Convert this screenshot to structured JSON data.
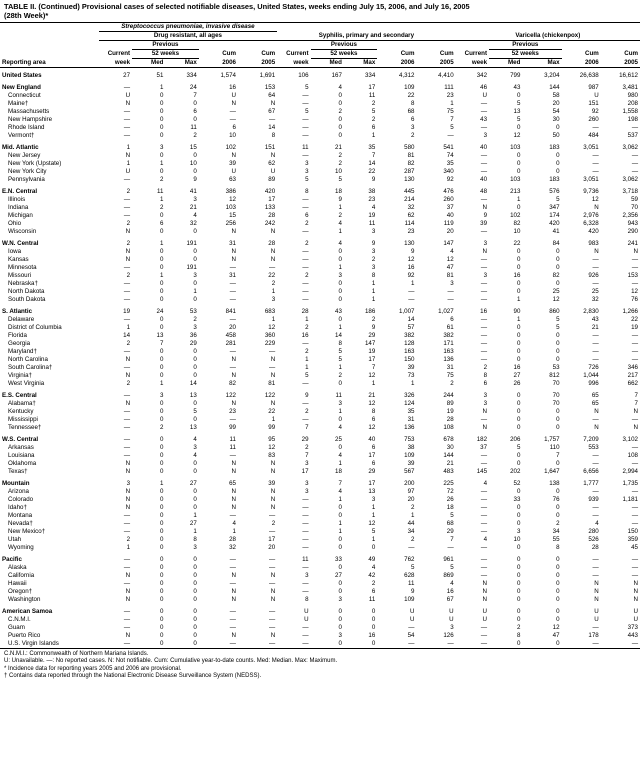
{
  "title_line1": "TABLE II. (Continued) Provisional cases of selected notifiable diseases, United States, weeks ending July 15, 2006, and July 16, 2005",
  "title_line2": "(28th Week)*",
  "disease_groups": [
    "Streptococcus pneumoniae, invasive disease",
    "",
    ""
  ],
  "subgroup_labels": [
    "Drug resistant, all ages",
    "Syphilis, primary and secondary",
    "Varicella (chickenpox)"
  ],
  "prev_label": "Previous",
  "col_labels": [
    "Reporting area",
    "Current week",
    "52 weeks Med",
    "Max",
    "Cum 2006",
    "Cum 2005",
    "Current week",
    "52 weeks Med",
    "Max",
    "Cum 2006",
    "Cum 2005",
    "Current week",
    "52 weeks Med",
    "Max",
    "Cum 2006",
    "Cum 2005"
  ],
  "row_head": [
    "Current",
    "52 weeks",
    "",
    "Cum",
    "Cum",
    "Current",
    "52 weeks",
    "",
    "Cum",
    "Cum",
    "Current",
    "52 weeks",
    "",
    "Cum",
    "Cum"
  ],
  "row_head2": [
    "week",
    "Med",
    "Max",
    "2006",
    "2005",
    "week",
    "Med",
    "Max",
    "2006",
    "2005",
    "week",
    "Med",
    "Max",
    "2006",
    "2005"
  ],
  "rows": [
    {
      "section": true,
      "label": "United States",
      "v": [
        "27",
        "51",
        "334",
        "1,574",
        "1,691",
        "106",
        "167",
        "334",
        "4,312",
        "4,410",
        "342",
        "799",
        "3,204",
        "26,638",
        "16,612"
      ]
    },
    {
      "section": true,
      "label": "New England",
      "v": [
        "—",
        "1",
        "24",
        "16",
        "153",
        "5",
        "4",
        "17",
        "109",
        "111",
        "46",
        "43",
        "144",
        "987",
        "3,481"
      ]
    },
    {
      "label": "Connecticut",
      "v": [
        "U",
        "0",
        "7",
        "U",
        "64",
        "—",
        "0",
        "11",
        "22",
        "23",
        "U",
        "0",
        "58",
        "U",
        "980"
      ]
    },
    {
      "label": "Maine†",
      "v": [
        "N",
        "0",
        "0",
        "N",
        "N",
        "—",
        "0",
        "2",
        "8",
        "1",
        "—",
        "5",
        "20",
        "151",
        "208"
      ]
    },
    {
      "label": "Massachusetts",
      "v": [
        "—",
        "0",
        "6",
        "—",
        "67",
        "5",
        "2",
        "5",
        "68",
        "75",
        "—",
        "13",
        "54",
        "92",
        "1,558"
      ]
    },
    {
      "label": "New Hampshire",
      "v": [
        "—",
        "0",
        "0",
        "—",
        "—",
        "—",
        "0",
        "2",
        "6",
        "7",
        "43",
        "5",
        "30",
        "260",
        "198"
      ]
    },
    {
      "label": "Rhode Island",
      "v": [
        "—",
        "0",
        "11",
        "6",
        "14",
        "—",
        "0",
        "6",
        "3",
        "5",
        "—",
        "0",
        "0",
        "—",
        "—"
      ]
    },
    {
      "label": "Vermont†",
      "v": [
        "—",
        "0",
        "2",
        "10",
        "8",
        "—",
        "0",
        "1",
        "2",
        "—",
        "3",
        "12",
        "50",
        "484",
        "537"
      ]
    },
    {
      "section": true,
      "label": "Mid. Atlantic",
      "v": [
        "1",
        "3",
        "15",
        "102",
        "151",
        "11",
        "21",
        "35",
        "580",
        "541",
        "40",
        "103",
        "183",
        "3,051",
        "3,062"
      ]
    },
    {
      "label": "New Jersey",
      "v": [
        "N",
        "0",
        "0",
        "N",
        "N",
        "—",
        "2",
        "7",
        "81",
        "74",
        "—",
        "0",
        "0",
        "—",
        "—"
      ]
    },
    {
      "label": "New York (Upstate)",
      "v": [
        "1",
        "1",
        "10",
        "39",
        "62",
        "3",
        "2",
        "14",
        "82",
        "35",
        "—",
        "0",
        "0",
        "—",
        "—"
      ]
    },
    {
      "label": "New York City",
      "v": [
        "U",
        "0",
        "0",
        "U",
        "U",
        "3",
        "10",
        "22",
        "287",
        "340",
        "—",
        "0",
        "0",
        "—",
        "—"
      ]
    },
    {
      "label": "Pennsylvania",
      "v": [
        "—",
        "2",
        "9",
        "63",
        "89",
        "5",
        "5",
        "9",
        "130",
        "92",
        "40",
        "103",
        "183",
        "3,051",
        "3,062"
      ]
    },
    {
      "section": true,
      "label": "E.N. Central",
      "v": [
        "2",
        "11",
        "41",
        "386",
        "420",
        "8",
        "18",
        "38",
        "445",
        "476",
        "48",
        "213",
        "576",
        "9,736",
        "3,718"
      ]
    },
    {
      "label": "Illinois",
      "v": [
        "—",
        "1",
        "3",
        "12",
        "17",
        "—",
        "9",
        "23",
        "214",
        "260",
        "—",
        "1",
        "5",
        "12",
        "59"
      ]
    },
    {
      "label": "Indiana",
      "v": [
        "—",
        "2",
        "21",
        "103",
        "133",
        "—",
        "1",
        "4",
        "32",
        "37",
        "N",
        "0",
        "347",
        "N",
        "70"
      ]
    },
    {
      "label": "Michigan",
      "v": [
        "—",
        "0",
        "4",
        "15",
        "28",
        "6",
        "2",
        "19",
        "62",
        "40",
        "9",
        "102",
        "174",
        "2,976",
        "2,356"
      ]
    },
    {
      "label": "Ohio",
      "v": [
        "2",
        "6",
        "32",
        "256",
        "242",
        "2",
        "4",
        "11",
        "114",
        "119",
        "39",
        "82",
        "420",
        "6,328",
        "943"
      ]
    },
    {
      "label": "Wisconsin",
      "v": [
        "N",
        "0",
        "0",
        "N",
        "N",
        "—",
        "1",
        "3",
        "23",
        "20",
        "—",
        "10",
        "41",
        "420",
        "290"
      ]
    },
    {
      "section": true,
      "label": "W.N. Central",
      "v": [
        "2",
        "1",
        "191",
        "31",
        "28",
        "2",
        "4",
        "9",
        "130",
        "147",
        "3",
        "22",
        "84",
        "983",
        "241"
      ]
    },
    {
      "label": "Iowa",
      "v": [
        "N",
        "0",
        "0",
        "N",
        "N",
        "—",
        "0",
        "3",
        "9",
        "4",
        "N",
        "0",
        "0",
        "N",
        "N"
      ]
    },
    {
      "label": "Kansas",
      "v": [
        "N",
        "0",
        "0",
        "N",
        "N",
        "—",
        "0",
        "2",
        "12",
        "12",
        "—",
        "0",
        "0",
        "—",
        "—"
      ]
    },
    {
      "label": "Minnesota",
      "v": [
        "—",
        "0",
        "191",
        "—",
        "—",
        "—",
        "1",
        "3",
        "16",
        "47",
        "—",
        "0",
        "0",
        "—",
        "—"
      ]
    },
    {
      "label": "Missouri",
      "v": [
        "2",
        "1",
        "3",
        "31",
        "22",
        "2",
        "3",
        "8",
        "92",
        "81",
        "3",
        "16",
        "82",
        "926",
        "153"
      ]
    },
    {
      "label": "Nebraska†",
      "v": [
        "—",
        "0",
        "0",
        "—",
        "2",
        "—",
        "0",
        "1",
        "1",
        "3",
        "—",
        "0",
        "0",
        "—",
        "—"
      ]
    },
    {
      "label": "North Dakota",
      "v": [
        "—",
        "0",
        "1",
        "—",
        "1",
        "—",
        "0",
        "1",
        "—",
        "—",
        "—",
        "0",
        "25",
        "25",
        "12"
      ]
    },
    {
      "label": "South Dakota",
      "v": [
        "—",
        "0",
        "0",
        "—",
        "3",
        "—",
        "0",
        "1",
        "—",
        "—",
        "—",
        "1",
        "12",
        "32",
        "76"
      ]
    },
    {
      "section": true,
      "label": "S. Atlantic",
      "v": [
        "19",
        "24",
        "53",
        "841",
        "683",
        "28",
        "43",
        "186",
        "1,007",
        "1,027",
        "16",
        "90",
        "860",
        "2,830",
        "1,266"
      ]
    },
    {
      "label": "Delaware",
      "v": [
        "—",
        "0",
        "2",
        "—",
        "1",
        "1",
        "0",
        "2",
        "14",
        "6",
        "—",
        "1",
        "5",
        "43",
        "22"
      ]
    },
    {
      "label": "District of Columbia",
      "v": [
        "1",
        "0",
        "3",
        "20",
        "12",
        "2",
        "1",
        "9",
        "57",
        "61",
        "—",
        "0",
        "5",
        "21",
        "19"
      ]
    },
    {
      "label": "Florida",
      "v": [
        "14",
        "13",
        "36",
        "458",
        "360",
        "16",
        "14",
        "29",
        "382",
        "382",
        "—",
        "0",
        "0",
        "—",
        "—"
      ]
    },
    {
      "label": "Georgia",
      "v": [
        "2",
        "7",
        "29",
        "281",
        "229",
        "—",
        "8",
        "147",
        "128",
        "171",
        "—",
        "0",
        "0",
        "—",
        "—"
      ]
    },
    {
      "label": "Maryland†",
      "v": [
        "—",
        "0",
        "0",
        "—",
        "—",
        "2",
        "5",
        "19",
        "163",
        "163",
        "—",
        "0",
        "0",
        "—",
        "—"
      ]
    },
    {
      "label": "North Carolina",
      "v": [
        "N",
        "0",
        "0",
        "N",
        "N",
        "1",
        "5",
        "17",
        "150",
        "136",
        "—",
        "0",
        "0",
        "—",
        "—"
      ]
    },
    {
      "label": "South Carolina†",
      "v": [
        "—",
        "0",
        "0",
        "—",
        "—",
        "1",
        "1",
        "7",
        "39",
        "31",
        "2",
        "16",
        "53",
        "726",
        "346"
      ]
    },
    {
      "label": "Virginia†",
      "v": [
        "N",
        "0",
        "0",
        "N",
        "N",
        "5",
        "2",
        "12",
        "73",
        "75",
        "8",
        "27",
        "812",
        "1,044",
        "217"
      ]
    },
    {
      "label": "West Virginia",
      "v": [
        "2",
        "1",
        "14",
        "82",
        "81",
        "—",
        "0",
        "1",
        "1",
        "2",
        "6",
        "26",
        "70",
        "996",
        "662"
      ]
    },
    {
      "section": true,
      "label": "E.S. Central",
      "v": [
        "—",
        "3",
        "13",
        "122",
        "122",
        "9",
        "11",
        "21",
        "326",
        "244",
        "3",
        "0",
        "70",
        "65",
        "7"
      ]
    },
    {
      "label": "Alabama†",
      "v": [
        "N",
        "0",
        "0",
        "N",
        "N",
        "—",
        "3",
        "12",
        "124",
        "89",
        "3",
        "0",
        "70",
        "65",
        "7"
      ]
    },
    {
      "label": "Kentucky",
      "v": [
        "—",
        "0",
        "5",
        "23",
        "22",
        "2",
        "1",
        "8",
        "35",
        "19",
        "N",
        "0",
        "0",
        "N",
        "N"
      ]
    },
    {
      "label": "Mississippi",
      "v": [
        "—",
        "0",
        "0",
        "—",
        "1",
        "—",
        "0",
        "6",
        "31",
        "28",
        "—",
        "0",
        "0",
        "—",
        "—"
      ]
    },
    {
      "label": "Tennessee†",
      "v": [
        "—",
        "2",
        "13",
        "99",
        "99",
        "7",
        "4",
        "12",
        "136",
        "108",
        "N",
        "0",
        "0",
        "N",
        "N"
      ]
    },
    {
      "section": true,
      "label": "W.S. Central",
      "v": [
        "—",
        "0",
        "4",
        "11",
        "95",
        "29",
        "25",
        "40",
        "753",
        "678",
        "182",
        "206",
        "1,757",
        "7,209",
        "3,102"
      ]
    },
    {
      "label": "Arkansas",
      "v": [
        "—",
        "0",
        "3",
        "11",
        "12",
        "2",
        "0",
        "6",
        "38",
        "30",
        "37",
        "5",
        "110",
        "553",
        "—"
      ]
    },
    {
      "label": "Louisiana",
      "v": [
        "—",
        "0",
        "4",
        "—",
        "83",
        "7",
        "4",
        "17",
        "109",
        "144",
        "—",
        "0",
        "7",
        "—",
        "108"
      ]
    },
    {
      "label": "Oklahoma",
      "v": [
        "N",
        "0",
        "0",
        "N",
        "N",
        "3",
        "1",
        "6",
        "39",
        "21",
        "—",
        "0",
        "0",
        "—",
        "—"
      ]
    },
    {
      "label": "Texas†",
      "v": [
        "N",
        "0",
        "0",
        "N",
        "N",
        "17",
        "18",
        "29",
        "567",
        "483",
        "145",
        "202",
        "1,647",
        "6,656",
        "2,994"
      ]
    },
    {
      "section": true,
      "label": "Mountain",
      "v": [
        "3",
        "1",
        "27",
        "65",
        "39",
        "3",
        "7",
        "17",
        "200",
        "225",
        "4",
        "52",
        "138",
        "1,777",
        "1,735"
      ]
    },
    {
      "label": "Arizona",
      "v": [
        "N",
        "0",
        "0",
        "N",
        "N",
        "3",
        "4",
        "13",
        "97",
        "72",
        "—",
        "0",
        "0",
        "—",
        "—"
      ]
    },
    {
      "label": "Colorado",
      "v": [
        "N",
        "0",
        "0",
        "N",
        "N",
        "—",
        "1",
        "3",
        "20",
        "26",
        "—",
        "33",
        "76",
        "939",
        "1,181"
      ]
    },
    {
      "label": "Idaho†",
      "v": [
        "N",
        "0",
        "0",
        "N",
        "N",
        "—",
        "0",
        "1",
        "2",
        "18",
        "—",
        "0",
        "0",
        "—",
        "—"
      ]
    },
    {
      "label": "Montana",
      "v": [
        "—",
        "0",
        "1",
        "—",
        "—",
        "—",
        "0",
        "1",
        "1",
        "5",
        "—",
        "0",
        "0",
        "—",
        "—"
      ]
    },
    {
      "label": "Nevada†",
      "v": [
        "—",
        "0",
        "27",
        "4",
        "2",
        "—",
        "1",
        "12",
        "44",
        "68",
        "—",
        "0",
        "2",
        "4",
        "—"
      ]
    },
    {
      "label": "New Mexico†",
      "v": [
        "—",
        "0",
        "1",
        "1",
        "—",
        "—",
        "1",
        "5",
        "34",
        "29",
        "—",
        "3",
        "34",
        "280",
        "150"
      ]
    },
    {
      "label": "Utah",
      "v": [
        "2",
        "0",
        "8",
        "28",
        "17",
        "—",
        "0",
        "1",
        "2",
        "7",
        "4",
        "10",
        "55",
        "526",
        "359"
      ]
    },
    {
      "label": "Wyoming",
      "v": [
        "1",
        "0",
        "3",
        "32",
        "20",
        "—",
        "0",
        "0",
        "—",
        "—",
        "—",
        "0",
        "8",
        "28",
        "45"
      ]
    },
    {
      "section": true,
      "label": "Pacific",
      "v": [
        "—",
        "0",
        "0",
        "—",
        "—",
        "11",
        "33",
        "49",
        "762",
        "961",
        "—",
        "0",
        "0",
        "—",
        "—"
      ]
    },
    {
      "label": "Alaska",
      "v": [
        "—",
        "0",
        "0",
        "—",
        "—",
        "—",
        "0",
        "4",
        "5",
        "5",
        "—",
        "0",
        "0",
        "—",
        "—"
      ]
    },
    {
      "label": "California",
      "v": [
        "N",
        "0",
        "0",
        "N",
        "N",
        "3",
        "27",
        "42",
        "628",
        "869",
        "—",
        "0",
        "0",
        "—",
        "—"
      ]
    },
    {
      "label": "Hawaii",
      "v": [
        "—",
        "0",
        "0",
        "—",
        "—",
        "—",
        "0",
        "2",
        "11",
        "4",
        "N",
        "0",
        "0",
        "N",
        "N"
      ]
    },
    {
      "label": "Oregon†",
      "v": [
        "N",
        "0",
        "0",
        "N",
        "N",
        "—",
        "0",
        "6",
        "9",
        "16",
        "N",
        "0",
        "0",
        "N",
        "N"
      ]
    },
    {
      "label": "Washington",
      "v": [
        "N",
        "0",
        "0",
        "N",
        "N",
        "8",
        "3",
        "11",
        "109",
        "67",
        "N",
        "0",
        "0",
        "N",
        "N"
      ]
    },
    {
      "section": true,
      "label": "American Samoa",
      "v": [
        "—",
        "0",
        "0",
        "—",
        "—",
        "U",
        "0",
        "0",
        "U",
        "U",
        "U",
        "0",
        "0",
        "U",
        "U"
      ]
    },
    {
      "label": "C.N.M.I.",
      "v": [
        "—",
        "0",
        "0",
        "—",
        "—",
        "U",
        "0",
        "0",
        "U",
        "U",
        "U",
        "0",
        "0",
        "U",
        "U"
      ]
    },
    {
      "label": "Guam",
      "v": [
        "—",
        "0",
        "0",
        "—",
        "—",
        "—",
        "0",
        "0",
        "—",
        "3",
        "—",
        "2",
        "12",
        "—",
        "373"
      ]
    },
    {
      "label": "Puerto Rico",
      "v": [
        "N",
        "0",
        "0",
        "N",
        "N",
        "—",
        "3",
        "16",
        "54",
        "126",
        "—",
        "8",
        "47",
        "178",
        "443"
      ]
    },
    {
      "label": "U.S. Virgin Islands",
      "v": [
        "—",
        "0",
        "0",
        "—",
        "—",
        "—",
        "0",
        "0",
        "—",
        "—",
        "—",
        "0",
        "0",
        "—",
        "—"
      ]
    }
  ],
  "footnotes": [
    "C.N.M.I.: Commonwealth of Northern Mariana Islands.",
    "U: Unavailable.      —: No reported cases.      N: Not notifiable.      Cum: Cumulative year-to-date counts.      Med: Median.      Max: Maximum.",
    "* Incidence data for reporting years 2005 and 2006 are provisional.",
    "† Contains data reported through the National Electronic Disease Surveillance System (NEDSS)."
  ]
}
